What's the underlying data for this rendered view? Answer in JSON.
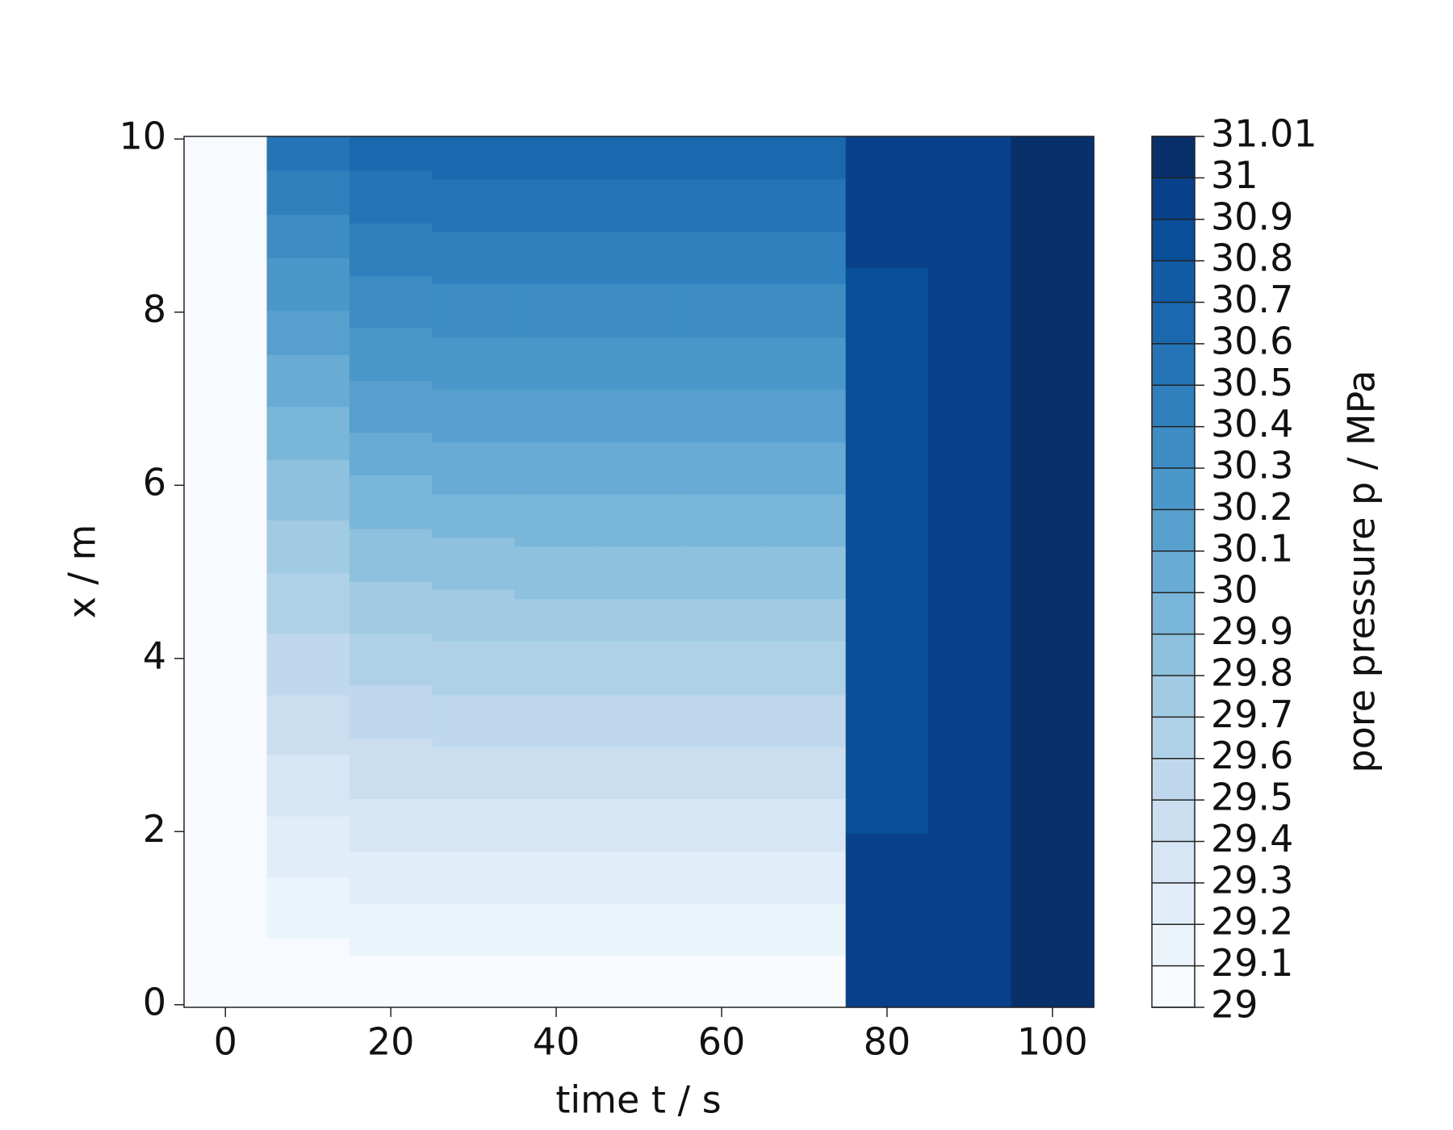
{
  "chart_data": {
    "type": "heatmap",
    "xlabel": "time t / s",
    "ylabel": "x / m",
    "colorbar_label": "pore pressure p / MPa",
    "xlim": [
      -5,
      105
    ],
    "xticks": [
      0,
      20,
      40,
      60,
      80,
      100
    ],
    "ylim": [
      -0.03,
      10.03
    ],
    "yticks": [
      0,
      2,
      4,
      6,
      8,
      10
    ],
    "cell_width": 10,
    "levels": [
      29,
      29.1,
      29.2,
      29.3,
      29.4,
      29.5,
      29.6,
      29.7,
      29.8,
      29.9,
      30,
      30.1,
      30.2,
      30.3,
      30.4,
      30.5,
      30.6,
      30.7,
      30.8,
      30.9,
      31,
      31.01
    ],
    "colors": [
      "#f7fbff",
      "#ebf3fb",
      "#e1edf8",
      "#d7e6f5",
      "#cadef0",
      "#bfd8ed",
      "#afd1e7",
      "#a0cbe2",
      "#8dc1dd",
      "#7ab6d9",
      "#68acd5",
      "#57a0ce",
      "#4a98c9",
      "#3d8dc4",
      "#3080bd",
      "#2474b7",
      "#1a68ae",
      "#115ca5",
      "#084e98",
      "#08418a",
      "#08306b"
    ],
    "columns": [
      {
        "t": 0,
        "edges": [
          -0.03,
          10.03
        ],
        "values": [
          29.05
        ]
      },
      {
        "t": 10,
        "edges": [
          -0.03,
          0.77,
          1.47,
          2.18,
          2.89,
          3.58,
          4.29,
          4.99,
          5.6,
          6.3,
          6.91,
          7.51,
          8.02,
          8.63,
          9.13,
          9.64,
          10.03
        ],
        "values": [
          29.05,
          29.15,
          29.25,
          29.35,
          29.45,
          29.55,
          29.65,
          29.75,
          29.85,
          29.95,
          30.05,
          30.15,
          30.25,
          30.35,
          30.45,
          30.55
        ]
      },
      {
        "t": 20,
        "edges": [
          -0.03,
          0.57,
          1.17,
          1.77,
          2.38,
          3.08,
          3.69,
          4.29,
          4.89,
          5.5,
          6.12,
          6.61,
          7.21,
          7.82,
          8.42,
          9.03,
          9.64,
          10.03
        ],
        "values": [
          29.05,
          29.15,
          29.25,
          29.35,
          29.45,
          29.55,
          29.65,
          29.75,
          29.85,
          29.95,
          30.05,
          30.15,
          30.25,
          30.35,
          30.45,
          30.55,
          30.65
        ]
      },
      {
        "t": 30,
        "edges": [
          -0.03,
          0.57,
          1.17,
          1.77,
          2.38,
          2.98,
          3.58,
          4.2,
          4.8,
          5.4,
          5.9,
          6.5,
          7.11,
          7.71,
          8.33,
          8.93,
          9.54,
          10.03
        ],
        "values": [
          29.05,
          29.15,
          29.25,
          29.35,
          29.45,
          29.55,
          29.65,
          29.75,
          29.85,
          29.95,
          30.05,
          30.15,
          30.25,
          30.35,
          30.45,
          30.55,
          30.65
        ]
      },
      {
        "t": 40,
        "edges": [
          -0.03,
          0.57,
          1.17,
          1.77,
          2.38,
          2.98,
          3.58,
          4.2,
          4.69,
          5.3,
          5.9,
          6.5,
          7.11,
          7.71,
          8.33,
          8.93,
          9.54,
          10.03
        ],
        "values": [
          29.05,
          29.15,
          29.25,
          29.35,
          29.45,
          29.55,
          29.65,
          29.75,
          29.85,
          29.95,
          30.05,
          30.15,
          30.25,
          30.35,
          30.45,
          30.55,
          30.65
        ]
      },
      {
        "t": 50,
        "edges": [
          -0.03,
          0.57,
          1.17,
          1.77,
          2.38,
          2.98,
          3.58,
          4.2,
          4.69,
          5.3,
          5.9,
          6.5,
          7.11,
          7.71,
          8.33,
          8.93,
          9.54,
          10.03
        ],
        "values": [
          29.05,
          29.15,
          29.25,
          29.35,
          29.45,
          29.55,
          29.65,
          29.75,
          29.85,
          29.95,
          30.05,
          30.15,
          30.25,
          30.35,
          30.45,
          30.55,
          30.65
        ]
      },
      {
        "t": 60,
        "edges": [
          -0.03,
          0.57,
          1.17,
          1.77,
          2.38,
          2.98,
          3.58,
          4.2,
          4.69,
          5.3,
          5.9,
          6.5,
          7.11,
          7.71,
          8.33,
          8.93,
          9.54,
          10.03
        ],
        "values": [
          29.05,
          29.15,
          29.25,
          29.35,
          29.45,
          29.55,
          29.65,
          29.75,
          29.85,
          29.95,
          30.05,
          30.15,
          30.25,
          30.35,
          30.45,
          30.55,
          30.65
        ]
      },
      {
        "t": 70,
        "edges": [
          -0.03,
          0.57,
          1.17,
          1.77,
          2.38,
          2.98,
          3.58,
          4.2,
          4.69,
          5.3,
          5.9,
          6.5,
          7.11,
          7.71,
          8.33,
          8.93,
          9.54,
          10.03
        ],
        "values": [
          29.05,
          29.15,
          29.25,
          29.35,
          29.45,
          29.55,
          29.65,
          29.75,
          29.85,
          29.95,
          30.05,
          30.15,
          30.25,
          30.35,
          30.45,
          30.55,
          30.65
        ]
      },
      {
        "t": 80,
        "edges": [
          -0.03,
          1.98,
          8.52,
          10.03
        ],
        "values": [
          30.95,
          30.85,
          30.95
        ]
      },
      {
        "t": 90,
        "edges": [
          -0.03,
          10.03
        ],
        "values": [
          30.95
        ]
      },
      {
        "t": 100,
        "edges": [
          -0.03,
          10.03
        ],
        "values": [
          31.005
        ]
      }
    ]
  }
}
